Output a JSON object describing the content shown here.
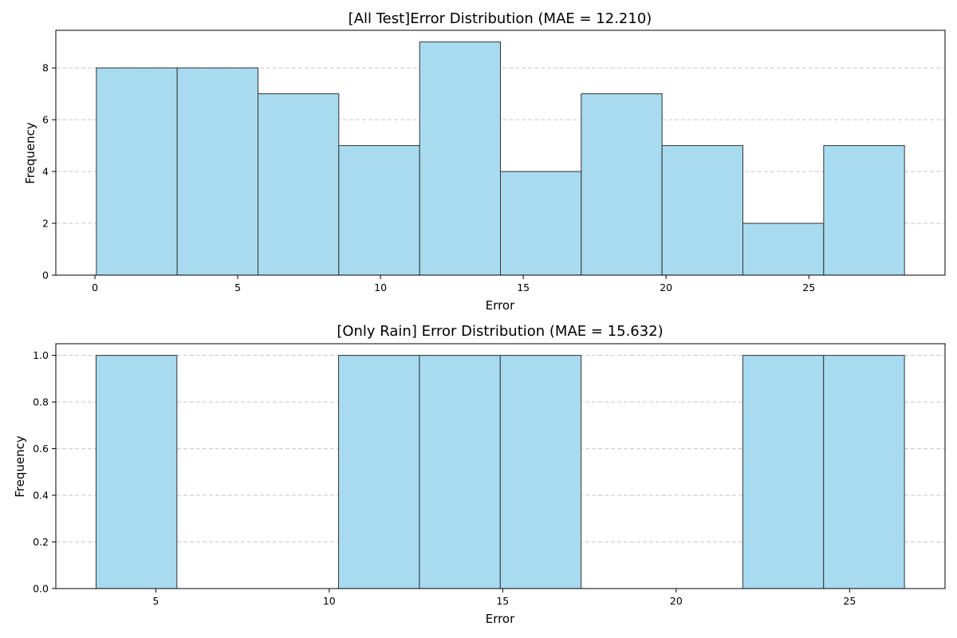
{
  "chart_data": [
    {
      "type": "bar",
      "title": "[All Test]Error Distribution (MAE = 12.210)",
      "xlabel": "Error",
      "ylabel": "Frequency",
      "bin_edges": [
        0.05,
        2.88,
        5.71,
        8.54,
        11.37,
        14.2,
        17.03,
        19.86,
        22.69,
        25.52,
        28.35
      ],
      "values": [
        8,
        8,
        7,
        5,
        9,
        4,
        7,
        5,
        2,
        5
      ],
      "xlim": [
        -1.37,
        29.77
      ],
      "ylim": [
        0,
        9.45
      ],
      "xticks": [
        0,
        5,
        10,
        15,
        20,
        25
      ],
      "yticks": [
        0,
        2,
        4,
        6,
        8
      ],
      "xtick_labels": [
        "0",
        "5",
        "10",
        "15",
        "20",
        "25"
      ],
      "ytick_labels": [
        "0",
        "2",
        "4",
        "6",
        "8"
      ],
      "bar_color": "#a8dbef",
      "edge_color": "#333333",
      "grid": "y-dashed"
    },
    {
      "type": "bar",
      "title": "[Only Rain] Error Distribution (MAE = 15.632)",
      "xlabel": "Error",
      "ylabel": "Frequency",
      "bin_edges": [
        3.28,
        5.61,
        7.94,
        10.27,
        12.6,
        14.93,
        17.26,
        19.59,
        21.92,
        24.25,
        26.58
      ],
      "values": [
        1,
        0,
        0,
        1,
        1,
        1,
        0,
        0,
        1,
        1
      ],
      "xlim": [
        2.12,
        27.75
      ],
      "ylim": [
        0,
        1.05
      ],
      "xticks": [
        5,
        10,
        15,
        20,
        25
      ],
      "yticks": [
        0,
        0.2,
        0.4,
        0.6,
        0.8,
        1.0
      ],
      "xtick_labels": [
        "5",
        "10",
        "15",
        "20",
        "25"
      ],
      "ytick_labels": [
        "0.0",
        "0.2",
        "0.4",
        "0.6",
        "0.8",
        "1.0"
      ],
      "bar_color": "#a8dbef",
      "edge_color": "#333333",
      "grid": "y-dashed"
    }
  ]
}
